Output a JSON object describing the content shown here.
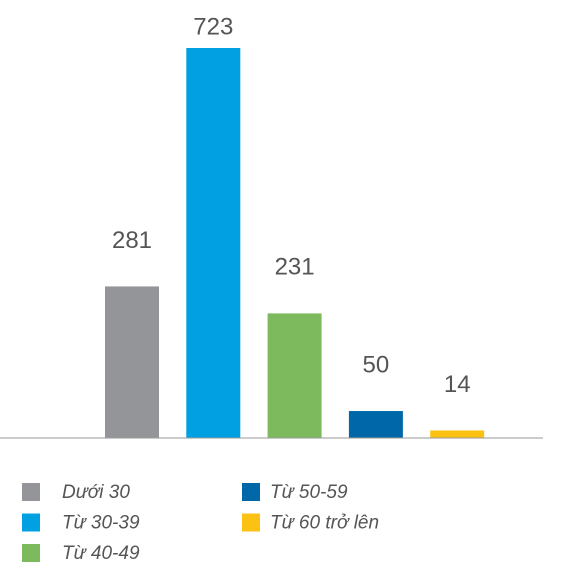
{
  "chart_data": {
    "type": "bar",
    "categories": [
      "Dưới 30",
      "Từ 30-39",
      "Từ 40-49",
      "Từ 50-59",
      "Từ 60 trở lên"
    ],
    "values": [
      281,
      723,
      231,
      50,
      14
    ],
    "colors": [
      "#939598",
      "#00a0e3",
      "#7dba5e",
      "#0068a9",
      "#fbc213"
    ]
  }
}
